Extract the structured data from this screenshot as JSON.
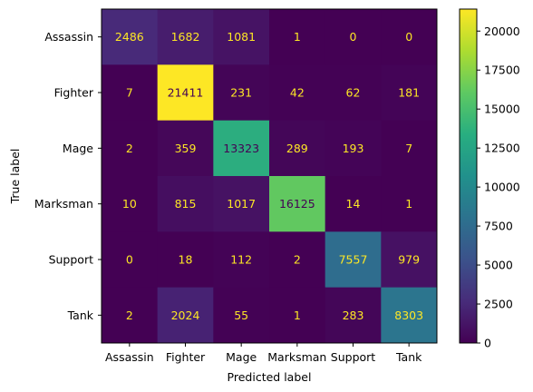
{
  "chart_data": {
    "type": "heatmap",
    "xlabel": "Predicted label",
    "ylabel": "True label",
    "x_categories": [
      "Assassin",
      "Fighter",
      "Mage",
      "Marksman",
      "Support",
      "Tank"
    ],
    "y_categories": [
      "Assassin",
      "Fighter",
      "Mage",
      "Marksman",
      "Support",
      "Tank"
    ],
    "values": [
      [
        2486,
        1682,
        1081,
        1,
        0,
        0
      ],
      [
        7,
        21411,
        231,
        42,
        62,
        181
      ],
      [
        2,
        359,
        13323,
        289,
        193,
        7
      ],
      [
        10,
        815,
        1017,
        16125,
        14,
        1
      ],
      [
        0,
        18,
        112,
        2,
        7557,
        979
      ],
      [
        2,
        2024,
        55,
        1,
        283,
        8303
      ]
    ],
    "colormap": "viridis",
    "vmin": 0,
    "vmax": 21411,
    "colorbar_ticks": [
      0,
      2500,
      5000,
      7500,
      10000,
      12500,
      15000,
      17500,
      20000
    ],
    "value_label_colors": {
      "dark_cell": "#fde725",
      "light_cell": "#440154"
    },
    "grid": false
  }
}
